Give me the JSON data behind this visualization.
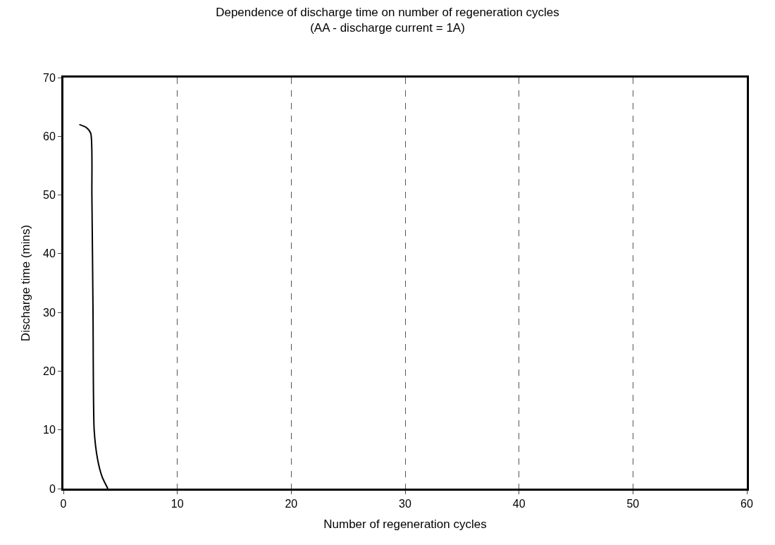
{
  "chart_data": {
    "type": "line",
    "title": "Dependence of discharge time on number of regeneration cycles",
    "subtitle": "(AA - discharge current = 1A)",
    "xlabel": "Number of regeneration cycles",
    "ylabel": "Discharge time (mins)",
    "series": [
      {
        "color": "#000000",
        "x": [
          1.4,
          2.0,
          2.4,
          2.5,
          2.6,
          2.7,
          3.0,
          3.4,
          3.9
        ],
        "values": [
          62,
          61.5,
          60.5,
          50,
          30,
          10,
          5,
          2,
          0
        ]
      }
    ],
    "xlim": [
      0,
      60
    ],
    "xticks": [
      0,
      10,
      20,
      30,
      40,
      50,
      60
    ],
    "ylim": [
      0,
      70
    ],
    "yticks": [
      0,
      10,
      20,
      30,
      40,
      50,
      60,
      70
    ],
    "grid": "x",
    "legend": false,
    "marker": "none",
    "line_style": "solid"
  }
}
